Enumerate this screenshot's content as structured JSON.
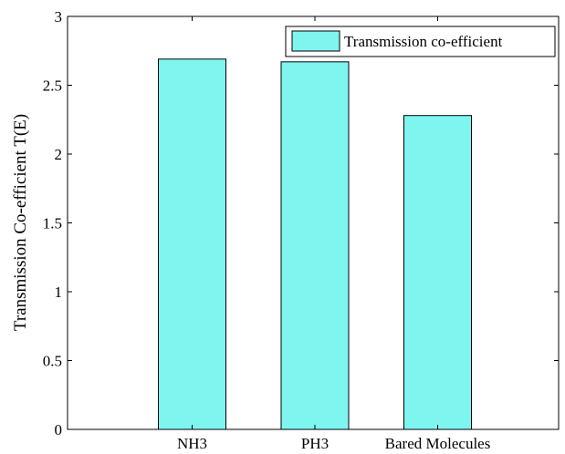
{
  "chart_data": {
    "type": "bar",
    "categories": [
      "NH3",
      "PH3",
      "Bared Molecules"
    ],
    "series": [
      {
        "name": "Transmission co-efficient",
        "values": [
          2.69,
          2.67,
          2.28
        ]
      }
    ],
    "xlabel": "",
    "ylabel": "Transmission Co-efficient T(E)",
    "ylim": [
      0,
      3
    ],
    "yticks": [
      "0",
      "0.5",
      "1",
      "1.5",
      "2",
      "2.5",
      "3"
    ],
    "ytick_values": [
      0,
      0.5,
      1,
      1.5,
      2,
      2.5,
      3
    ],
    "grid": false,
    "legend_position": "top-right",
    "colors": {
      "bar_fill": "#7ff5f0",
      "bar_stroke": "#000000",
      "axis": "#000000"
    }
  }
}
